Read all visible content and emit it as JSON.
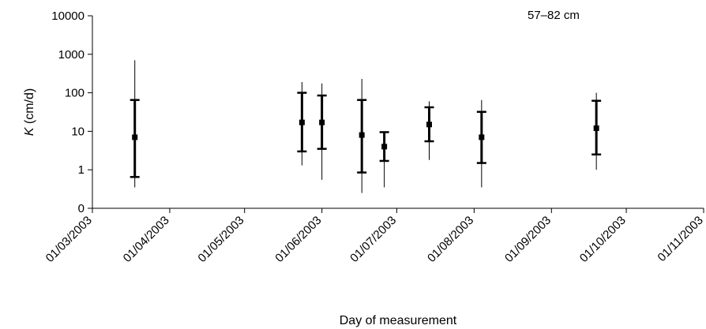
{
  "chart_data": {
    "type": "scatter",
    "annotation": "57–82 cm",
    "xlabel": "Day of measurement",
    "ylabel_italic": "K",
    "ylabel_unit": " (cm/d)",
    "y_scale": "log",
    "y_ticks": [
      {
        "value": 0,
        "label": "0"
      },
      {
        "value": 1,
        "label": "1"
      },
      {
        "value": 10,
        "label": "10"
      },
      {
        "value": 100,
        "label": "100"
      },
      {
        "value": 1000,
        "label": "1000"
      },
      {
        "value": 10000,
        "label": "10000"
      }
    ],
    "x_ticks": [
      "01/03/2003",
      "01/04/2003",
      "01/05/2003",
      "01/06/2003",
      "01/07/2003",
      "01/08/2003",
      "01/09/2003",
      "01/10/2003",
      "01/11/2003"
    ],
    "x_range": [
      "2003-03-01",
      "2003-11-01"
    ],
    "points": [
      {
        "date": "2003-03-18",
        "median": 7,
        "inner": [
          0.65,
          65
        ],
        "outer": [
          0.35,
          700
        ]
      },
      {
        "date": "2003-05-24",
        "median": 17,
        "inner": [
          3,
          100
        ],
        "outer": [
          1.3,
          190
        ]
      },
      {
        "date": "2003-06-01",
        "median": 17,
        "inner": [
          3.5,
          85
        ],
        "outer": [
          0.55,
          175
        ]
      },
      {
        "date": "2003-06-17",
        "median": 8,
        "inner": [
          0.85,
          65
        ],
        "outer": [
          0.25,
          230
        ]
      },
      {
        "date": "2003-06-26",
        "median": 4,
        "inner": [
          1.7,
          9.5
        ],
        "outer": [
          0.35,
          10
        ]
      },
      {
        "date": "2003-07-14",
        "median": 15,
        "inner": [
          5.5,
          42
        ],
        "outer": [
          1.8,
          60
        ]
      },
      {
        "date": "2003-08-04",
        "median": 7,
        "inner": [
          1.5,
          32
        ],
        "outer": [
          0.35,
          65
        ]
      },
      {
        "date": "2003-09-19",
        "median": 12,
        "inner": [
          2.5,
          62
        ],
        "outer": [
          1.0,
          100
        ]
      }
    ]
  }
}
